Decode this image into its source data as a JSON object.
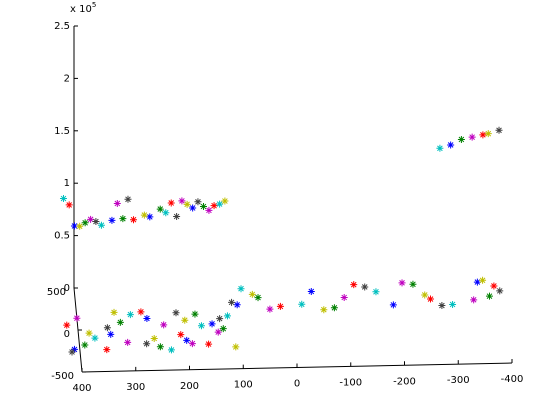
{
  "chart_data": {
    "type": "scatter3",
    "z_multiplier": {
      "base": "x 10",
      "exponent": "5"
    },
    "xlim": [
      -400,
      400
    ],
    "xticks": [
      400,
      300,
      200,
      100,
      0,
      -100,
      -200,
      -300,
      -400
    ],
    "ylim": [
      -500,
      500
    ],
    "yticks": [
      -500,
      0,
      500
    ],
    "zlim": [
      0,
      250000
    ],
    "zticks": [
      {
        "value": 0,
        "label": "0"
      },
      {
        "value": 50000,
        "label": "0.5"
      },
      {
        "value": 100000,
        "label": "1"
      },
      {
        "value": 150000,
        "label": "1.5"
      },
      {
        "value": 200000,
        "label": "2"
      },
      {
        "value": 250000,
        "label": "2.5"
      }
    ],
    "marker": "asterisk",
    "series": [
      {
        "color": "#0000ff",
        "x": [
          410,
          340,
          270,
          200,
          150,
          100,
          -40,
          -190,
          -350,
          400,
          330,
          260,
          180,
          -300
        ],
        "y": [
          -230,
          -60,
          120,
          -150,
          40,
          260,
          400,
          220,
          470,
          440,
          460,
          430,
          450,
          450
        ],
        "z": [
          0,
          0,
          0,
          0,
          0,
          0,
          0,
          0,
          0,
          64000,
          67000,
          72000,
          78000,
          133000
        ]
      },
      {
        "color": "#008000",
        "x": [
          390,
          320,
          250,
          180,
          130,
          60,
          -80,
          -230,
          -370,
          380,
          310,
          240,
          160,
          -320
        ],
        "y": [
          -180,
          80,
          -220,
          160,
          -20,
          340,
          200,
          460,
          300,
          450,
          440,
          470,
          440,
          450
        ],
        "z": [
          0,
          0,
          0,
          0,
          0,
          0,
          0,
          0,
          0,
          66000,
          70000,
          76000,
          80000,
          138000
        ]
      },
      {
        "color": "#ff0000",
        "x": [
          420,
          350,
          280,
          210,
          160,
          20,
          -120,
          -260,
          -380,
          410,
          290,
          220,
          140,
          -360
        ],
        "y": [
          60,
          -240,
          200,
          -80,
          -200,
          230,
          470,
          280,
          420,
          430,
          450,
          440,
          460,
          450
        ],
        "z": [
          0,
          0,
          0,
          0,
          0,
          0,
          0,
          0,
          0,
          85000,
          68000,
          84000,
          79000,
          142000
        ]
      },
      {
        "color": "#00bfbf",
        "x": [
          370,
          300,
          230,
          170,
          120,
          90,
          -20,
          -160,
          -300,
          420,
          350,
          230,
          130,
          -280
        ],
        "y": [
          -100,
          170,
          -260,
          20,
          130,
          450,
          250,
          380,
          210,
          470,
          430,
          450,
          440,
          450
        ],
        "z": [
          0,
          0,
          0,
          0,
          0,
          0,
          0,
          0,
          0,
          88000,
          65000,
          74000,
          82000,
          130000
        ]
      },
      {
        "color": "#bf00bf",
        "x": [
          400,
          310,
          240,
          190,
          140,
          40,
          -100,
          -210,
          -340,
          370,
          320,
          200,
          150,
          -340
        ],
        "y": [
          140,
          -160,
          40,
          -190,
          -60,
          200,
          320,
          480,
          260,
          440,
          460,
          450,
          430,
          450
        ],
        "z": [
          0,
          0,
          0,
          0,
          0,
          0,
          0,
          0,
          0,
          70000,
          83000,
          85000,
          77000,
          140000
        ]
      },
      {
        "color": "#bfbf00",
        "x": [
          380,
          330,
          260,
          200,
          110,
          70,
          -60,
          -250,
          -360,
          390,
          270,
          190,
          120,
          -370
        ],
        "y": [
          -40,
          200,
          -120,
          90,
          -240,
          380,
          180,
          330,
          490,
          460,
          440,
          470,
          450,
          450
        ],
        "z": [
          0,
          0,
          0,
          0,
          0,
          0,
          0,
          0,
          0,
          62000,
          73000,
          80000,
          84000,
          143000
        ]
      },
      {
        "color": "#404040",
        "x": [
          415,
          345,
          275,
          215,
          135,
          110,
          -140,
          -280,
          -390,
          360,
          300,
          210,
          170,
          -390
        ],
        "y": [
          -260,
          20,
          -180,
          180,
          100,
          290,
          440,
          200,
          360,
          450,
          470,
          440,
          460,
          450
        ],
        "z": [
          0,
          0,
          0,
          0,
          0,
          0,
          0,
          0,
          0,
          67000,
          86000,
          71000,
          83000,
          146000
        ]
      }
    ]
  }
}
